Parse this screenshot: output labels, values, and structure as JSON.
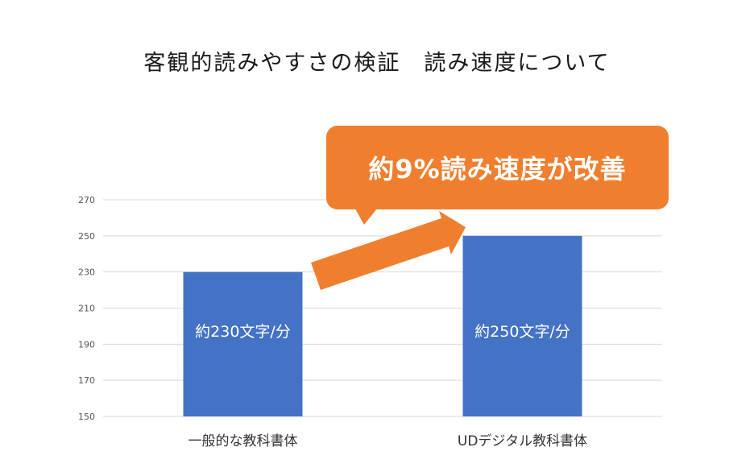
{
  "slide": {
    "title": "客観的読みやすさの検証　読み速度について"
  },
  "callout": {
    "text": "約9%読み速度が改善"
  },
  "colors": {
    "bar": "#4472c4",
    "callout": "#ef7f2f",
    "arrow": "#ef7f2f",
    "grid": "#d9d9d9",
    "axis_text": "#555555"
  },
  "chart_data": {
    "type": "bar",
    "categories": [
      "一般的な教科書体",
      "UDデジタル教科書体"
    ],
    "values": [
      230,
      250
    ],
    "data_labels": [
      "約230文字/分",
      "約250文字/分"
    ],
    "ylim": [
      150,
      270
    ],
    "yticks": [
      150,
      170,
      190,
      210,
      230,
      250,
      270
    ],
    "grid": true,
    "legend": "none"
  }
}
